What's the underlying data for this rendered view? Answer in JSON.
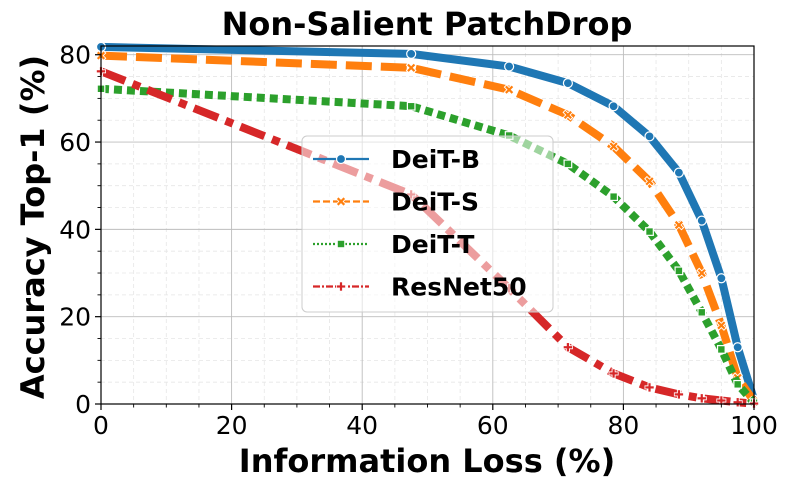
{
  "chart_data": {
    "type": "line",
    "title": "Non-Salient PatchDrop",
    "xlabel": "Information Loss (%)",
    "ylabel": "Accuracy Top-1 (%)",
    "xlim": [
      0,
      100
    ],
    "ylim": [
      0,
      82
    ],
    "xticks": [
      0,
      20,
      40,
      60,
      80,
      100
    ],
    "yticks": [
      0,
      20,
      40,
      60,
      80
    ],
    "grid": true,
    "legend_position": "center",
    "series": [
      {
        "name": "DeiT-B",
        "color": "#1f77b4",
        "style": "solid",
        "marker": "circle",
        "x": [
          0,
          47.5,
          62.5,
          71.5,
          78.5,
          84,
          88.5,
          92,
          95,
          97.5,
          100
        ],
        "y": [
          81.8,
          80.2,
          77.3,
          73.5,
          68.2,
          61.3,
          53,
          42,
          28.8,
          13,
          1
        ]
      },
      {
        "name": "DeiT-S",
        "color": "#ff7f0e",
        "style": "dashed",
        "marker": "x",
        "x": [
          0,
          47.5,
          62.5,
          71.5,
          78.5,
          84,
          88.5,
          92,
          95,
          97.5,
          100
        ],
        "y": [
          79.8,
          77,
          72,
          66.2,
          59,
          51,
          41,
          30,
          18,
          6,
          0.6
        ]
      },
      {
        "name": "DeiT-T",
        "color": "#2ca02c",
        "style": "dotted",
        "marker": "square",
        "x": [
          0,
          47.5,
          62.5,
          71.5,
          78.5,
          84,
          88.5,
          92,
          95,
          97.5,
          100
        ],
        "y": [
          72.2,
          68.2,
          61.5,
          55,
          47.5,
          39.5,
          30.5,
          21,
          12.5,
          4.5,
          0.3
        ]
      },
      {
        "name": "ResNet50",
        "color": "#d62728",
        "style": "dashdot",
        "marker": "plus",
        "x": [
          0,
          47.5,
          62.5,
          71.5,
          78.5,
          84,
          88.5,
          92,
          95,
          97.5,
          100
        ],
        "y": [
          76.2,
          48,
          26.5,
          13,
          7,
          3.8,
          2.2,
          1.3,
          0.8,
          0.4,
          0.1
        ]
      }
    ]
  }
}
